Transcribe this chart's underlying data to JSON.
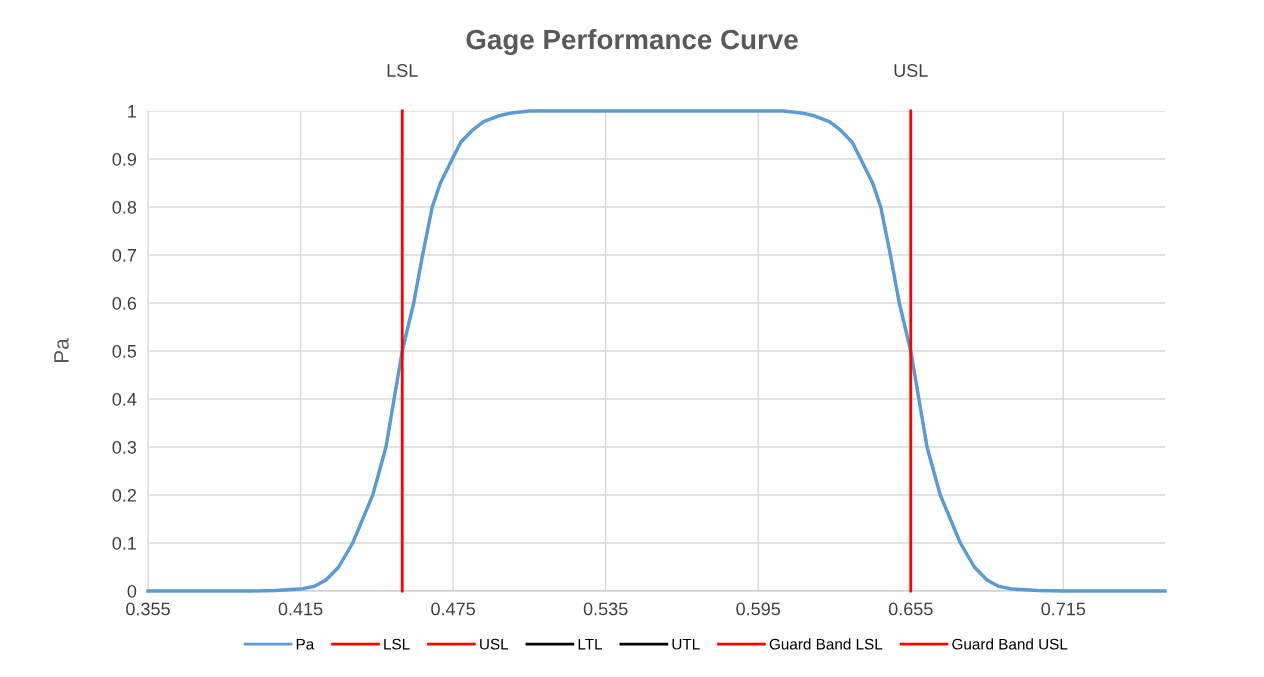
{
  "chart_data": {
    "type": "line",
    "title": "Gage Performance Curve",
    "ylabel": "Pa",
    "xlim": [
      0.355,
      0.755
    ],
    "xticks": [
      0.355,
      0.415,
      0.475,
      0.535,
      0.595,
      0.655,
      0.715
    ],
    "ylim": [
      0,
      1
    ],
    "yticks": [
      0,
      0.1,
      0.2,
      0.3,
      0.4,
      0.5,
      0.6,
      0.7,
      0.8,
      0.9,
      1
    ],
    "grid": true,
    "legend": "bottom",
    "marker": "none",
    "line_style": "solid",
    "series": [
      {
        "name": "Pa",
        "color": "#5b9bd5",
        "x": [
          0.355,
          0.395,
          0.405,
          0.415,
          0.4205,
          0.425,
          0.43,
          0.4355,
          0.4434,
          0.4486,
          0.455,
          0.4595,
          0.463,
          0.4668,
          0.47,
          0.4747,
          0.478,
          0.4826,
          0.487,
          0.493,
          0.498,
          0.505,
          0.555,
          0.605,
          0.612,
          0.617,
          0.623,
          0.6274,
          0.632,
          0.6353,
          0.64,
          0.6432,
          0.647,
          0.6505,
          0.655,
          0.6614,
          0.6666,
          0.6745,
          0.68,
          0.685,
          0.6895,
          0.695,
          0.705,
          0.715,
          0.755
        ],
        "values": [
          0,
          0,
          0.001,
          0.004,
          0.01,
          0.023,
          0.05,
          0.1,
          0.2,
          0.3,
          0.5,
          0.6,
          0.7,
          0.8,
          0.85,
          0.9,
          0.935,
          0.96,
          0.978,
          0.99,
          0.996,
          1,
          1,
          1,
          0.996,
          0.99,
          0.978,
          0.96,
          0.935,
          0.9,
          0.85,
          0.8,
          0.7,
          0.6,
          0.5,
          0.3,
          0.2,
          0.1,
          0.05,
          0.023,
          0.01,
          0.004,
          0.001,
          0,
          0
        ]
      },
      {
        "name": "LSL",
        "color": "#ff0000",
        "x": [
          0.455,
          0.455
        ],
        "values": [
          0,
          1
        ]
      },
      {
        "name": "USL",
        "color": "#ff0000",
        "x": [
          0.655,
          0.655
        ],
        "values": [
          0,
          1
        ]
      },
      {
        "name": "LTL",
        "color": "#000000"
      },
      {
        "name": "UTL",
        "color": "#000000"
      },
      {
        "name": "Guard Band LSL",
        "color": "#ff0000"
      },
      {
        "name": "Guard Band USL",
        "color": "#ff0000"
      }
    ],
    "annotations": [
      {
        "text": "LSL",
        "x": 0.455,
        "y": 1
      },
      {
        "text": "USL",
        "x": 0.655,
        "y": 1
      }
    ]
  }
}
